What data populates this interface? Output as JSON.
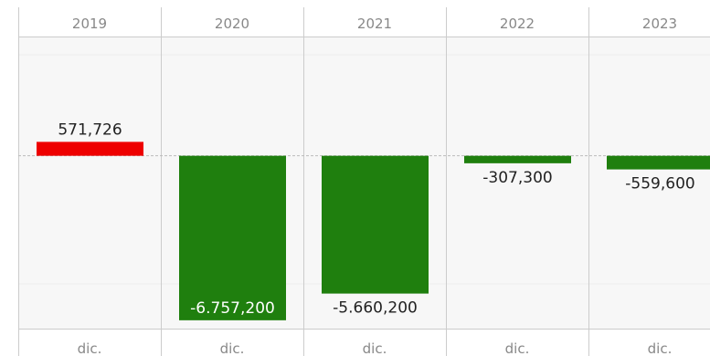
{
  "chart_data": {
    "type": "bar",
    "categories": [
      "2019",
      "2020",
      "2021",
      "2022",
      "2023"
    ],
    "month_labels": [
      "dic.",
      "dic.",
      "dic.",
      "dic.",
      "dic."
    ],
    "value_labels": [
      "571,726",
      "-6.757,200",
      "-5.660,200",
      "-307,300",
      "-559,600"
    ],
    "values": [
      571726,
      -6757200,
      -5660200,
      -307300,
      -559600
    ],
    "ylim": [
      -7100000,
      4900000
    ],
    "grid": true,
    "colors": {
      "positive": "#ee0000",
      "negative": "#1f7f0e",
      "grid": "#cccccc",
      "band": "#f7f7f7",
      "zero_line": "#bbbbbb"
    }
  }
}
